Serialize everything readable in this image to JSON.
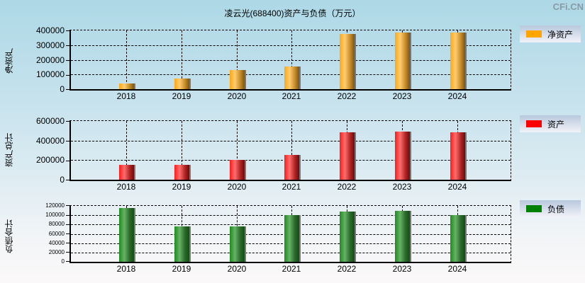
{
  "title": "凌云光(688400)资产与负债（万元）",
  "brand": "CFi.CN",
  "colors": {
    "net_assets": "#FFA500",
    "assets": "#FF0000",
    "liabilities": "#008000"
  },
  "panels": [
    {
      "ylabel": "净资产",
      "legend": "净资产",
      "yticks": [
        "400000",
        "300000",
        "200000",
        "100000",
        "0"
      ],
      "xticks": [
        "2018",
        "2019",
        "2020",
        "2021",
        "2022",
        "2023",
        "2024"
      ]
    },
    {
      "ylabel": "资产总计",
      "legend": "资产",
      "yticks": [
        "600000",
        "400000",
        "200000",
        "0"
      ],
      "xticks": [
        "2018",
        "2019",
        "2020",
        "2021",
        "2022",
        "2023",
        "2024"
      ]
    },
    {
      "ylabel": "负债合计",
      "legend": "负债",
      "yticks": [
        "120000",
        "100000",
        "80000",
        "60000",
        "40000",
        "20000",
        "0"
      ],
      "xticks": [
        "2018",
        "2019",
        "2020",
        "2021",
        "2022",
        "2023",
        "2024"
      ]
    }
  ],
  "chart_data": [
    {
      "type": "bar",
      "title": "凌云光(688400)资产与负债（万元）",
      "xlabel": "",
      "ylabel": "净资产",
      "categories": [
        "2018",
        "2019",
        "2020",
        "2021",
        "2022",
        "2023",
        "2024"
      ],
      "series": [
        {
          "name": "净资产",
          "values": [
            38000,
            76000,
            133000,
            157000,
            385000,
            395000,
            395000
          ]
        }
      ],
      "ylim": [
        0,
        400000
      ],
      "grid": true,
      "legend_position": "right"
    },
    {
      "type": "bar",
      "title": "",
      "xlabel": "",
      "ylabel": "资产总计",
      "categories": [
        "2018",
        "2019",
        "2020",
        "2021",
        "2022",
        "2023",
        "2024"
      ],
      "series": [
        {
          "name": "资产",
          "values": [
            157000,
            155000,
            210000,
            258000,
            500000,
            507000,
            500000
          ]
        }
      ],
      "ylim": [
        0,
        600000
      ],
      "grid": true,
      "legend_position": "right"
    },
    {
      "type": "bar",
      "title": "",
      "xlabel": "",
      "ylabel": "负债合计",
      "categories": [
        "2018",
        "2019",
        "2020",
        "2021",
        "2022",
        "2023",
        "2024"
      ],
      "series": [
        {
          "name": "负债",
          "values": [
            119000,
            78000,
            78000,
            103000,
            111000,
            113000,
            103000
          ]
        }
      ],
      "ylim": [
        0,
        120000
      ],
      "grid": true,
      "legend_position": "right"
    }
  ]
}
